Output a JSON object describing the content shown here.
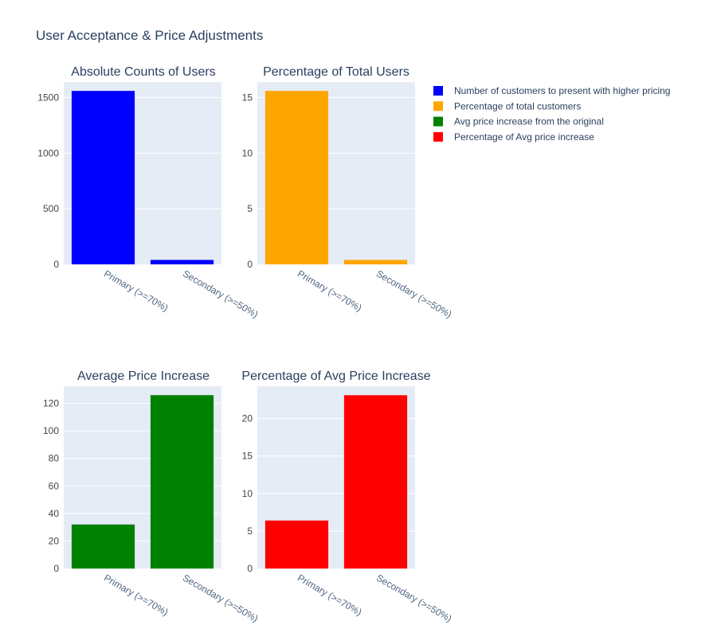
{
  "figure_title": "User Acceptance & Price Adjustments",
  "chart_data": [
    {
      "type": "bar",
      "title": "Absolute Counts of Users",
      "categories": [
        "Primary (>=70%)",
        "Secondary (>=50%)"
      ],
      "series": [
        {
          "name": "Number of customers to present with higher pricing",
          "values": [
            1560,
            40
          ],
          "color": "#0000ff"
        }
      ],
      "ylim": [
        0,
        1640
      ],
      "yticks": [
        0,
        500,
        1000,
        1500
      ],
      "ytick_labels": [
        "0",
        "500",
        "1000",
        "1500"
      ]
    },
    {
      "type": "bar",
      "title": "Percentage of Total Users",
      "categories": [
        "Primary (>=70%)",
        "Secondary (>=50%)"
      ],
      "series": [
        {
          "name": "Percentage of total customers",
          "values": [
            15.6,
            0.4
          ],
          "color": "#ffa500"
        }
      ],
      "ylim": [
        0,
        16.4
      ],
      "yticks": [
        0,
        5,
        10,
        15
      ],
      "ytick_labels": [
        "0",
        "5",
        "10",
        "15"
      ]
    },
    {
      "type": "bar",
      "title": "Average Price Increase",
      "categories": [
        "Primary (>=70%)",
        "Secondary (>=50%)"
      ],
      "series": [
        {
          "name": "Avg price increase from the original",
          "values": [
            32,
            126
          ],
          "color": "#008000"
        }
      ],
      "ylim": [
        0,
        132.5
      ],
      "yticks": [
        0,
        20,
        40,
        60,
        80,
        100,
        120
      ],
      "ytick_labels": [
        "0",
        "20",
        "40",
        "60",
        "80",
        "100",
        "120"
      ]
    },
    {
      "type": "bar",
      "title": "Percentage of Avg Price Increase",
      "categories": [
        "Primary (>=70%)",
        "Secondary (>=50%)"
      ],
      "series": [
        {
          "name": "Percentage of Avg price increase",
          "values": [
            6.4,
            23.1
          ],
          "color": "#ff0000"
        }
      ],
      "ylim": [
        0,
        24.3
      ],
      "yticks": [
        0,
        5,
        10,
        15,
        20
      ],
      "ytick_labels": [
        "0",
        "5",
        "10",
        "15",
        "20"
      ]
    }
  ],
  "legend": {
    "placement": "top-right",
    "items": [
      {
        "label": "Number of customers to present with higher pricing",
        "color": "#0000ff"
      },
      {
        "label": "Percentage of total customers",
        "color": "#ffa500"
      },
      {
        "label": "Avg price increase from the original",
        "color": "#008000"
      },
      {
        "label": "Percentage of Avg price increase",
        "color": "#ff0000"
      }
    ]
  },
  "colors": {
    "plot_bg": "#e5ecf6",
    "grid": "#ffffff",
    "text": "#2a3f5f",
    "tick_text": "#444444"
  }
}
